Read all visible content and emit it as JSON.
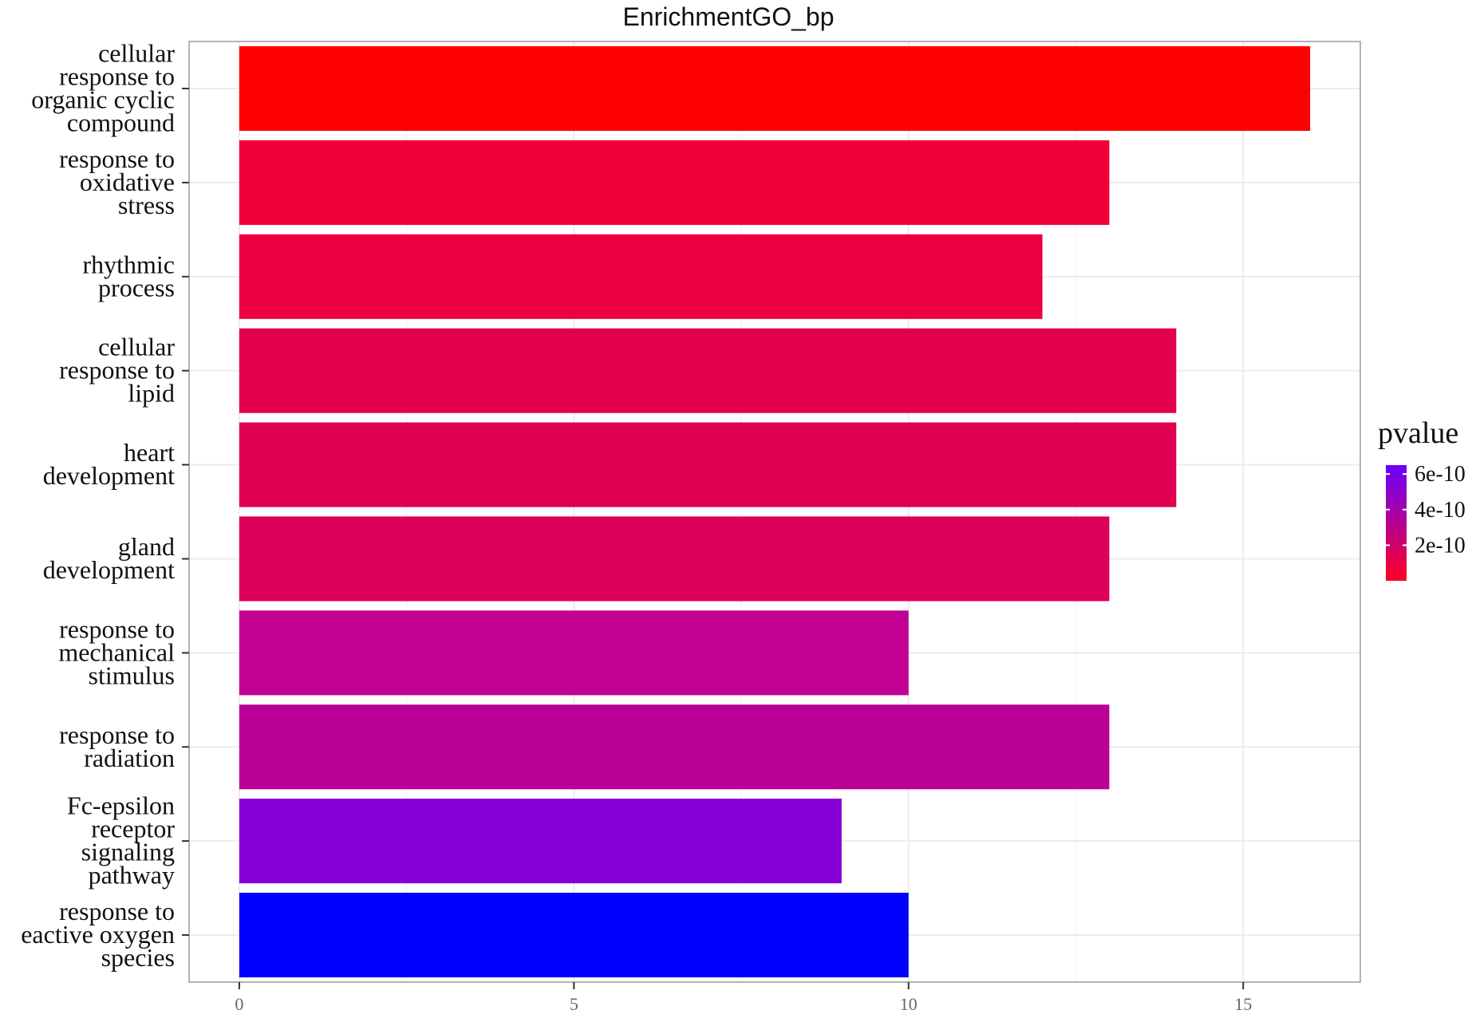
{
  "chart_data": {
    "type": "bar",
    "orientation": "horizontal",
    "title": "EnrichmentGO_bp",
    "xlabel": "",
    "ylabel": "",
    "categories": [
      "cellular response to organic cyclic compound",
      "response to oxidative stress",
      "rhythmic process",
      "cellular response to lipid",
      "heart development",
      "gland development",
      "response to mechanical stimulus",
      "response to radiation",
      "Fc-epsilon receptor signaling pathway",
      "response to eactive oxygen species"
    ],
    "category_lines": [
      [
        "cellular",
        "response to",
        "organic cyclic",
        "compound"
      ],
      [
        "response to",
        "oxidative",
        "stress"
      ],
      [
        "rhythmic",
        "process"
      ],
      [
        "cellular",
        "response to",
        "lipid"
      ],
      [
        "heart",
        "development"
      ],
      [
        "gland",
        "development"
      ],
      [
        "response to",
        "mechanical",
        "stimulus"
      ],
      [
        "response to",
        "radiation"
      ],
      [
        "Fc-epsilon",
        "receptor",
        "signaling",
        "pathway"
      ],
      [
        "response to",
        "eactive oxygen",
        "species"
      ]
    ],
    "values": [
      16,
      13,
      12,
      14,
      14,
      13,
      10,
      13,
      9,
      10
    ],
    "pvalues": [
      5e-12,
      3e-11,
      4.5e-11,
      6e-11,
      6.5e-11,
      7e-11,
      2e-10,
      2.15e-10,
      4e-10,
      6.5e-10
    ],
    "bar_colors": [
      "#ff0000",
      "#f10038",
      "#ec0042",
      "#e3004e",
      "#e00052",
      "#dc005a",
      "#c20091",
      "#bb0096",
      "#8800d6",
      "#0000ff"
    ],
    "xlim": [
      -0.75,
      16.75
    ],
    "x_ticks": [
      0,
      5,
      10,
      15
    ],
    "x_tick_labels": [
      "0",
      "5",
      "10",
      "15"
    ],
    "grid": true,
    "legend": {
      "title": "pvalue",
      "placement": "right",
      "color_low": "#ff0026",
      "color_high": "#6a00ff",
      "range": [
        0,
        6.5e-10
      ],
      "tick_values": [
        6e-10,
        4e-10,
        2e-10
      ],
      "tick_labels": [
        "6e-10",
        "4e-10",
        "2e-10"
      ]
    }
  }
}
